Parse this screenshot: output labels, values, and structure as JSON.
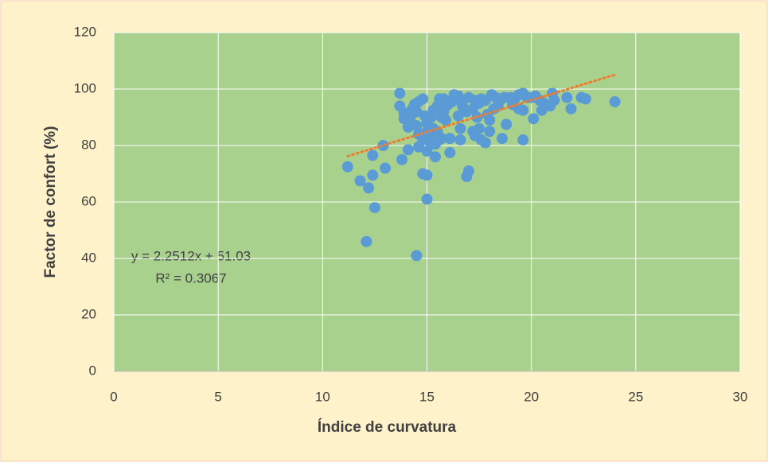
{
  "chart_data": {
    "type": "scatter",
    "x_label": "Índice de curvatura",
    "y_label": "Factor de confort (%)",
    "color": "#5b9bd5",
    "x": [
      11.2,
      11.8,
      12.2,
      12.1,
      12.4,
      12.4,
      12.5,
      12.9,
      13,
      13.8,
      14.1,
      14.5,
      14.6,
      14.8,
      15,
      15,
      15,
      15.2,
      15.4,
      13.7,
      13.7,
      13.9,
      13.9,
      14.1,
      14.4,
      14.6,
      14.8,
      14.5,
      14.6,
      14.8,
      15,
      15,
      15.2,
      15.3,
      15.5,
      15.6,
      15.8,
      15.8,
      16,
      16.2,
      16.3,
      16.5,
      16.6,
      16.7,
      16.5,
      16.6,
      16.6,
      16.1,
      16.1,
      15.7,
      15.9,
      17,
      17.3,
      17.5,
      17.6,
      17.8,
      17.2,
      17.4,
      17.5,
      17.3,
      17.6,
      17.8,
      17.2,
      17,
      16.9,
      18,
      18,
      18.1,
      18.3,
      18.5,
      18.7,
      18.8,
      18.6,
      18.4,
      19,
      19.2,
      19.4,
      19.6,
      19.8,
      19.4,
      19.6,
      19.6,
      20,
      20.2,
      20.1,
      20.4,
      20.6,
      20.9,
      21,
      21.1,
      20.5,
      21.7,
      21.9,
      22.4,
      22.6,
      24,
      15.1,
      15.3,
      15.5,
      14.9,
      15.7,
      16.9,
      17.9,
      18.2,
      19.1,
      14.5,
      14.3,
      14.2,
      15.4,
      15.6
    ],
    "values": [
      72.5,
      67.5,
      65,
      46,
      76.5,
      69.5,
      58,
      80,
      72,
      75,
      78.5,
      41,
      79.5,
      70,
      61,
      69.5,
      78,
      80.5,
      76,
      98.5,
      94,
      91.5,
      89.5,
      86.5,
      94.5,
      95.5,
      96.5,
      87,
      84,
      82,
      85,
      88,
      90,
      92.5,
      94,
      96.5,
      96.5,
      92,
      94.5,
      95.5,
      98,
      97.5,
      96,
      94,
      90.5,
      86,
      82,
      82.5,
      77.5,
      82.5,
      89,
      97,
      96,
      95,
      96.5,
      96,
      93,
      90,
      86,
      83.5,
      82,
      81,
      85,
      71,
      69,
      89,
      85,
      98,
      97,
      96,
      97,
      87.5,
      82.5,
      94,
      97,
      96.5,
      98,
      98.5,
      97,
      93,
      92.5,
      82,
      97,
      97.5,
      89.5,
      96,
      95,
      94,
      98.5,
      96,
      92.5,
      97,
      93,
      97,
      96.5,
      95.5,
      83,
      86,
      85,
      90.5,
      90,
      92,
      91,
      93,
      94.5,
      92,
      93,
      90,
      80.5,
      82
    ],
    "trendline": {
      "slope": 2.2512,
      "intercept": 51.03,
      "x_range": [
        11.2,
        24
      ],
      "color": "#ed7d31",
      "equation": "y = 2.2512x + 51.03",
      "r_squared": "R² = 0.3067"
    },
    "xlim": [
      0,
      30
    ],
    "xticks": [
      0,
      5,
      10,
      15,
      20,
      25,
      30
    ],
    "ylim": [
      0,
      120
    ],
    "yticks": [
      0,
      20,
      40,
      60,
      80,
      100,
      120
    ],
    "grid": true
  }
}
